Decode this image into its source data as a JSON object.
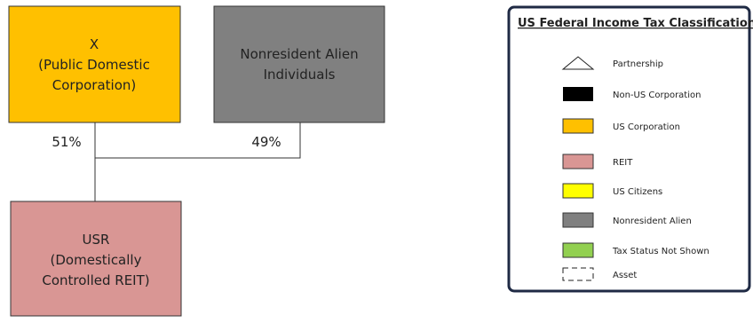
{
  "nodes": [
    {
      "label": [
        "X",
        "(Public Domestic",
        "Corporation)"
      ]
    },
    {
      "label": [
        "Nonresident Alien",
        "Individuals"
      ]
    },
    {
      "label": [
        "USR",
        "(Domestically",
        "Controlled REIT)"
      ]
    }
  ],
  "edges": [
    {
      "label": "51%"
    },
    {
      "label": "49%"
    }
  ],
  "legend": {
    "title": "US Federal Income Tax Classification",
    "items": [
      "Partnership",
      "Non-US Corporation",
      "US Corporation",
      "REIT",
      "US Citizens",
      "Nonresident Alien",
      "Tax Status Not Shown",
      "Asset"
    ]
  }
}
